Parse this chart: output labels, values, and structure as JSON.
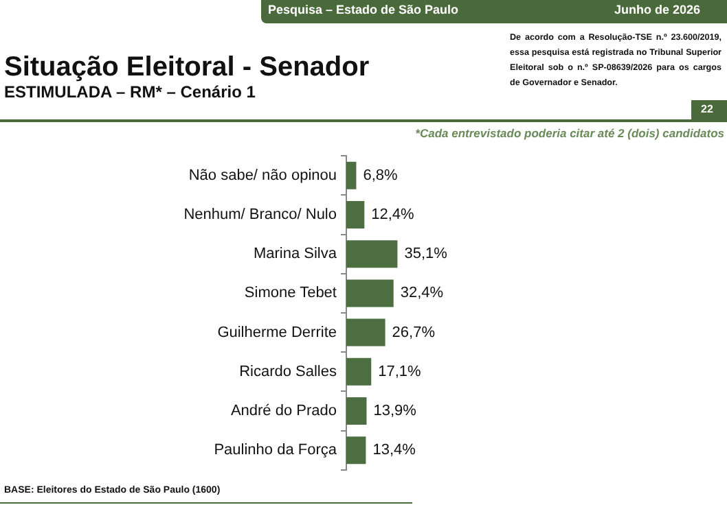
{
  "chart_data": {
    "type": "bar",
    "orientation": "horizontal",
    "title": "Situação Eleitoral - Senador",
    "subtitle": "ESTIMULADA – RM* – Cenário 1",
    "categories": [
      "Não sabe/ não opinou",
      "Nenhum/ Branco/ Nulo",
      "Marina Silva",
      "Simone Tebet",
      "Guilherme Derrite",
      "Ricardo Salles",
      "André do Prado",
      "Paulinho da Força"
    ],
    "values": [
      6.8,
      12.4,
      35.1,
      32.4,
      26.7,
      17.1,
      13.9,
      13.4
    ],
    "value_labels": [
      "6,8%",
      "12,4%",
      "35,1%",
      "32,4%",
      "26,7%",
      "17,1%",
      "13,9%",
      "13,4%"
    ],
    "color": "#4d6e40",
    "annotations": [
      "Pesquisa – Estado de São Paulo",
      "Junho de 2026",
      "De acordo com a Resolução-TSE n.º 23.600/2019, essa pesquisa está registrada no Tribunal Superior Eleitoral sob o n.º SP-08639/2026 para os cargos de Governador e Senador.",
      "22",
      "*Cada entrevistado poderia citar até 2 (dois) candidatos",
      "BASE: Eleitores do Estado de São Paulo (1600)"
    ]
  }
}
